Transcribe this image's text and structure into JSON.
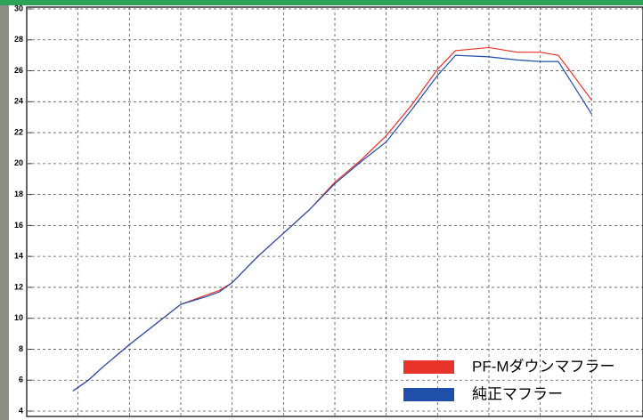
{
  "chart_data": {
    "type": "line",
    "x": [
      0.9,
      1.2,
      1.5,
      2,
      2.5,
      3,
      3.5,
      3.75,
      4,
      4.5,
      5,
      5.5,
      6,
      6.5,
      7,
      7.5,
      8,
      8.35,
      9,
      9.55,
      10,
      10.35,
      10.6,
      11
    ],
    "series": [
      {
        "name": "PF-Mダウンマフラー",
        "color": "#e8332a",
        "values": [
          5.3,
          6.0,
          6.9,
          8.3,
          9.6,
          10.9,
          11.5,
          11.8,
          12.3,
          14.0,
          15.5,
          17.0,
          18.8,
          20.2,
          21.8,
          23.8,
          26.1,
          27.3,
          27.5,
          27.2,
          27.2,
          27.0,
          25.9,
          24.1
        ]
      },
      {
        "name": "純正マフラー",
        "color": "#1f4fa8",
        "values": [
          5.3,
          6.0,
          6.9,
          8.3,
          9.6,
          10.9,
          11.4,
          11.7,
          12.3,
          14.0,
          15.5,
          17.0,
          18.7,
          20.1,
          21.4,
          23.5,
          25.7,
          27.0,
          26.9,
          26.7,
          26.6,
          26.6,
          25.3,
          23.2
        ]
      }
    ],
    "xlim": [
      0,
      12
    ],
    "xticks": [
      1,
      2,
      3,
      4,
      5,
      6,
      7,
      8,
      9,
      10,
      11
    ],
    "ylim": [
      4,
      30
    ],
    "yticks": [
      4,
      6,
      8,
      10,
      12,
      14,
      16,
      18,
      20,
      22,
      24,
      26,
      28,
      30
    ],
    "grid": true
  }
}
